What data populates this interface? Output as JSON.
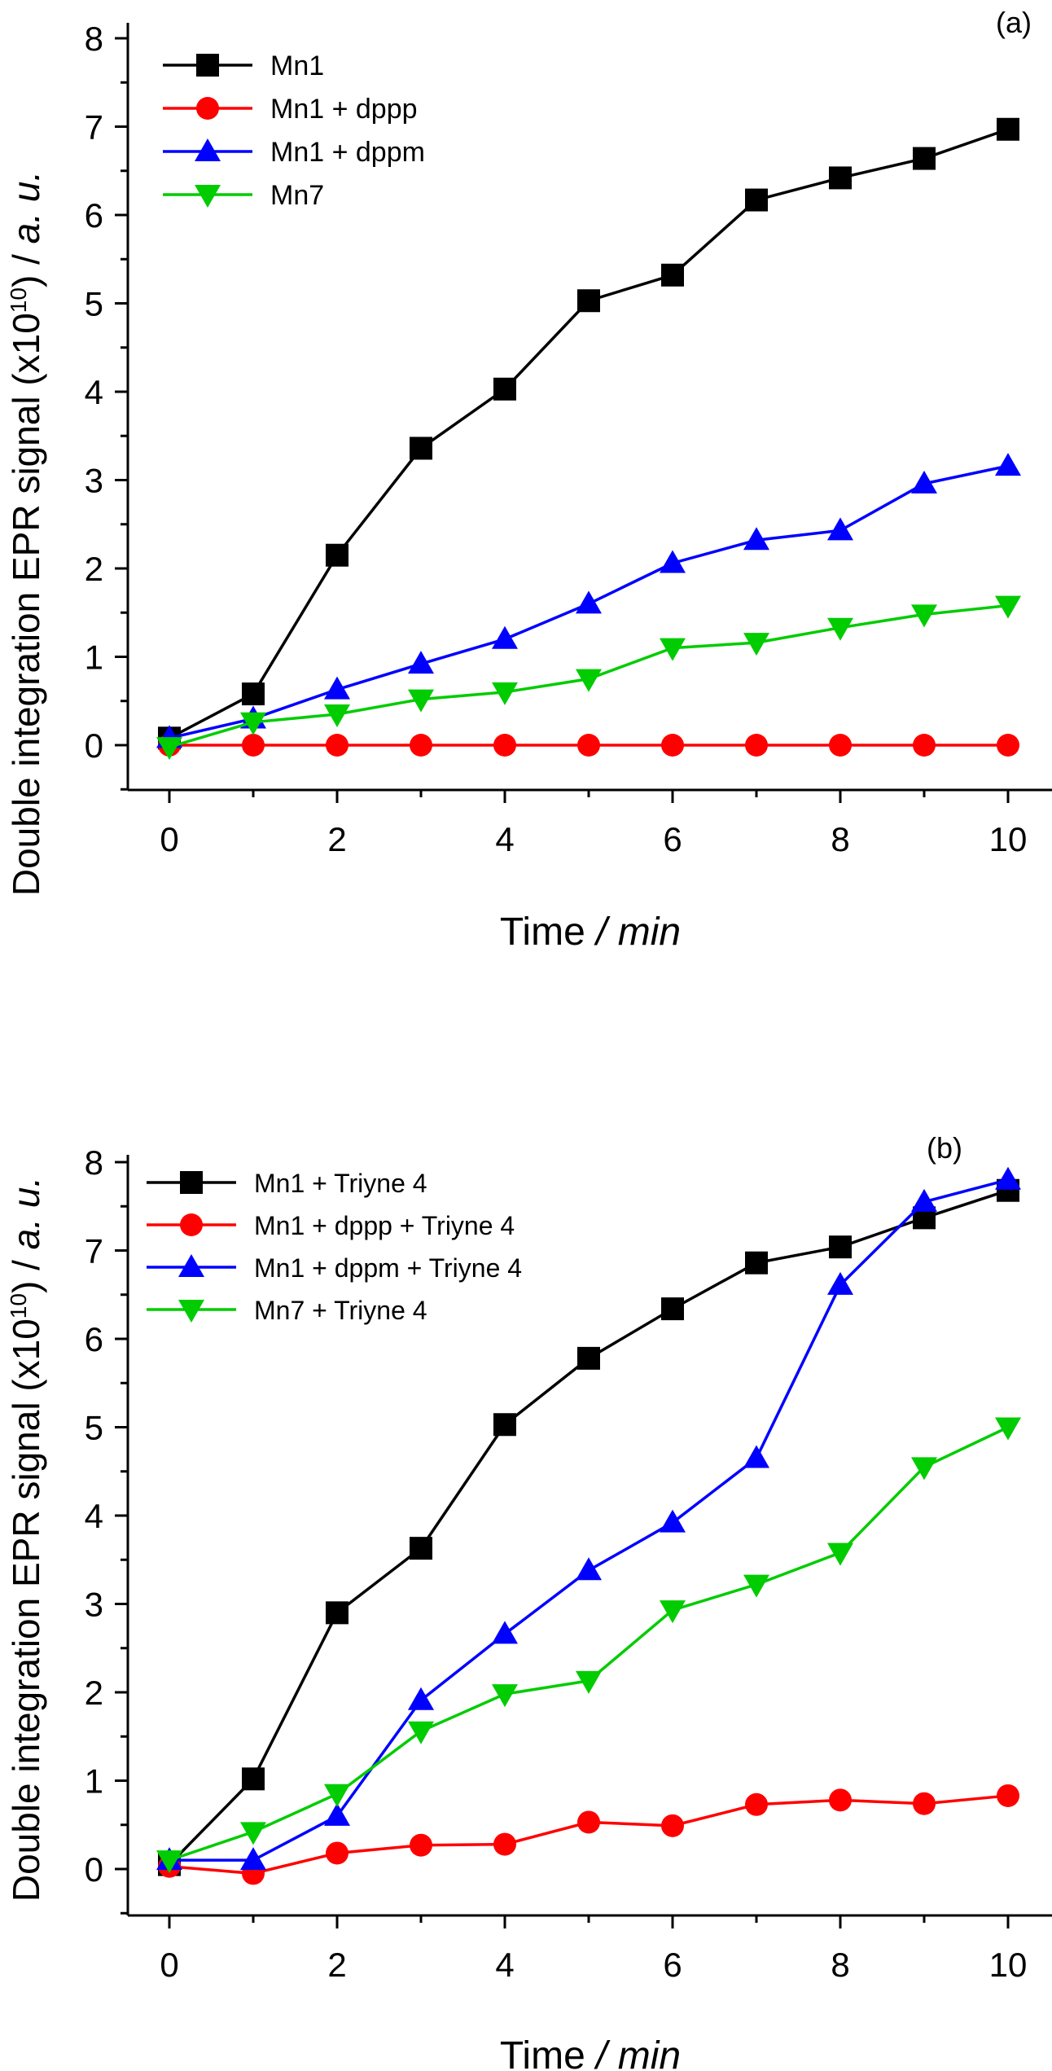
{
  "chart_data": [
    {
      "type": "line",
      "panel_label": "(a)",
      "xlabel": "Time",
      "xlabel_unit": "min",
      "ylabel": "Double integration EPR signal (x10",
      "ylabel_exp": "10",
      "ylabel_tail": ") / ",
      "ylabel_unit": "a. u.",
      "xlim": [
        -0.4,
        10.5
      ],
      "ylim": [
        -0.5,
        8
      ],
      "xticks": [
        0,
        2,
        4,
        6,
        8,
        10
      ],
      "yticks": [
        0,
        1,
        2,
        3,
        4,
        5,
        6,
        7,
        8
      ],
      "x": [
        0,
        1,
        2,
        3,
        4,
        5,
        6,
        7,
        8,
        9,
        10
      ],
      "series": [
        {
          "name": "Mn1",
          "color": "#000000",
          "marker": "square",
          "values": [
            0.08,
            0.58,
            2.15,
            3.36,
            4.03,
            5.03,
            5.32,
            6.17,
            6.42,
            6.64,
            6.97
          ]
        },
        {
          "name": "Mn1 + dppp",
          "color": "#ff0000",
          "marker": "circle",
          "values": [
            0.0,
            0.0,
            0.0,
            0.0,
            0.0,
            0.0,
            0.0,
            0.0,
            0.0,
            0.0,
            0.0
          ]
        },
        {
          "name": "Mn1 + dppm",
          "color": "#0000ff",
          "marker": "triangle-up",
          "values": [
            0.08,
            0.3,
            0.63,
            0.92,
            1.2,
            1.6,
            2.06,
            2.32,
            2.43,
            2.96,
            3.16
          ]
        },
        {
          "name": "Mn7",
          "color": "#00cc00",
          "marker": "triangle-down",
          "values": [
            -0.02,
            0.26,
            0.35,
            0.52,
            0.6,
            0.75,
            1.1,
            1.16,
            1.33,
            1.48,
            1.58
          ]
        }
      ]
    },
    {
      "type": "line",
      "panel_label": "(b)",
      "xlabel": "Time",
      "xlabel_unit": "min",
      "ylabel": "Double integration EPR signal (x10",
      "ylabel_exp": "10",
      "ylabel_tail": ") / ",
      "ylabel_unit": "a. u.",
      "xlim": [
        -0.4,
        10.5
      ],
      "ylim": [
        -0.5,
        8
      ],
      "xticks": [
        0,
        2,
        4,
        6,
        8,
        10
      ],
      "yticks": [
        0,
        1,
        2,
        3,
        4,
        5,
        6,
        7,
        8
      ],
      "x": [
        0,
        1,
        2,
        3,
        4,
        5,
        6,
        7,
        8,
        9,
        10
      ],
      "series": [
        {
          "name": "Mn1 + Triyne 4",
          "color": "#000000",
          "marker": "square",
          "values": [
            0.05,
            1.02,
            2.9,
            3.63,
            5.03,
            5.78,
            6.34,
            6.86,
            7.04,
            7.37,
            7.68
          ]
        },
        {
          "name": "Mn1 + dppp + Triyne 4",
          "color": "#ff0000",
          "marker": "circle",
          "values": [
            0.03,
            -0.05,
            0.18,
            0.27,
            0.28,
            0.53,
            0.49,
            0.73,
            0.78,
            0.74,
            0.83
          ]
        },
        {
          "name": "Mn1 + dppm + Triyne 4",
          "color": "#0000ff",
          "marker": "triangle-up",
          "values": [
            0.1,
            0.1,
            0.6,
            1.91,
            2.66,
            3.38,
            3.92,
            4.65,
            6.61,
            7.55,
            7.8
          ]
        },
        {
          "name": "Mn7 + Triyne 4",
          "color": "#00cc00",
          "marker": "triangle-down",
          "values": [
            0.1,
            0.42,
            0.85,
            1.56,
            1.98,
            2.13,
            2.93,
            3.22,
            3.58,
            4.55,
            5.0
          ]
        }
      ]
    }
  ]
}
